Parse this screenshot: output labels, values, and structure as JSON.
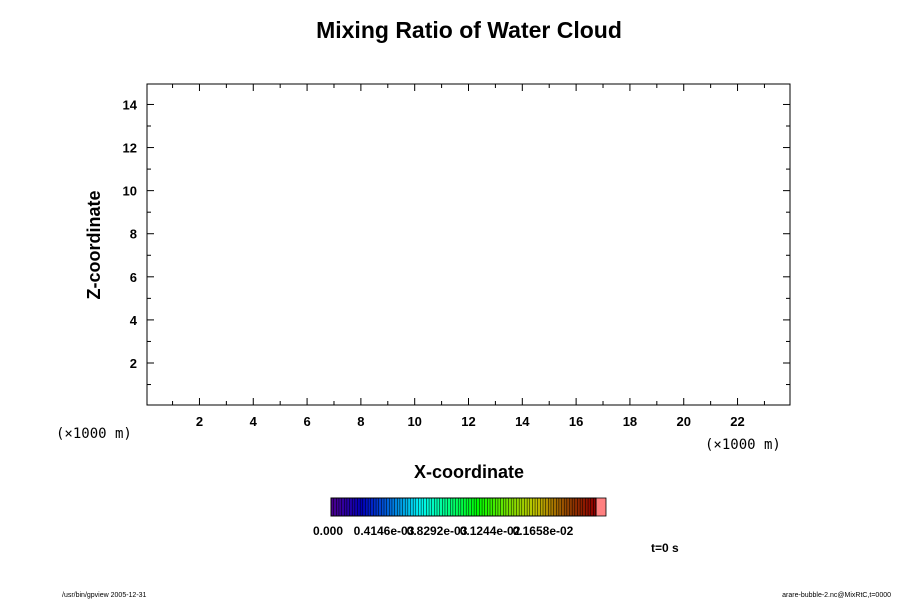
{
  "chart_data": {
    "type": "heatmap",
    "title": "Mixing Ratio of Water Cloud",
    "xlabel": "X-coordinate",
    "ylabel": "Z-coordinate",
    "x_unit": "(×1000 m)",
    "y_unit": "(×1000 m)",
    "xlim": [
      0.05,
      23.95
    ],
    "ylim": [
      0.05,
      14.95
    ],
    "x_ticks": [
      2,
      4,
      6,
      8,
      10,
      12,
      14,
      16,
      18,
      20,
      22
    ],
    "y_ticks": [
      2,
      4,
      6,
      8,
      10,
      12,
      14
    ],
    "grid": false,
    "values": [],
    "colorbar": {
      "tick_labels": [
        "0.000",
        "0.4146e-03",
        "0.8292e-03",
        "0.1244e-02",
        "0.1658e-02"
      ],
      "tick_values": [
        0,
        0.0004146,
        0.0008292,
        0.001244,
        0.001658
      ],
      "max": 0.0020725,
      "levels": 100,
      "overflow_color": "#ff8080"
    },
    "time_label": "t=0 s"
  },
  "footer": {
    "left": "/usr/bin/gpview 2005-12-31",
    "right": "arare-bubble-2.nc@MixRtC,t=0000"
  }
}
